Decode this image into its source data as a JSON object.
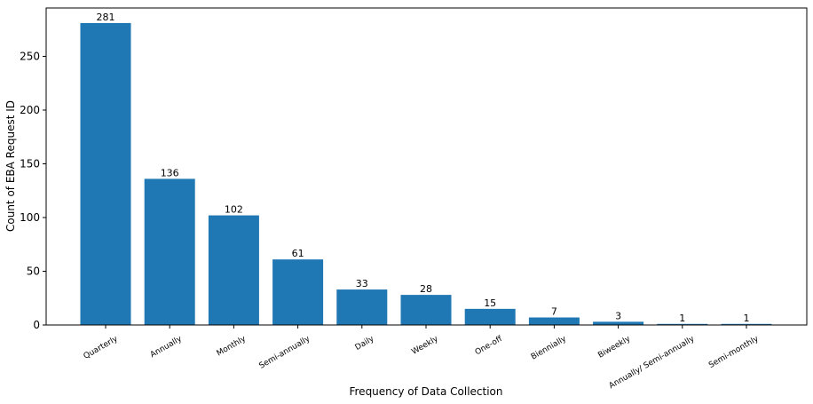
{
  "chart_data": {
    "type": "bar",
    "title": "",
    "xlabel": "Frequency of Data Collection",
    "ylabel": "Count of EBA Request ID",
    "categories": [
      "Quarterly",
      "Annually",
      "Monthly",
      "Semi-annually",
      "Daily",
      "Weekly",
      "One-off",
      "Biennially",
      "Biweekly",
      "Annually/ Semi-annually",
      "Semi-monthly"
    ],
    "values": [
      281,
      136,
      102,
      61,
      33,
      28,
      15,
      7,
      3,
      1,
      1
    ],
    "yticks": [
      0,
      50,
      100,
      150,
      200,
      250
    ],
    "ylim": [
      0,
      295
    ],
    "grid": false,
    "bar_color": "#1f77b4",
    "data_labels": true
  }
}
